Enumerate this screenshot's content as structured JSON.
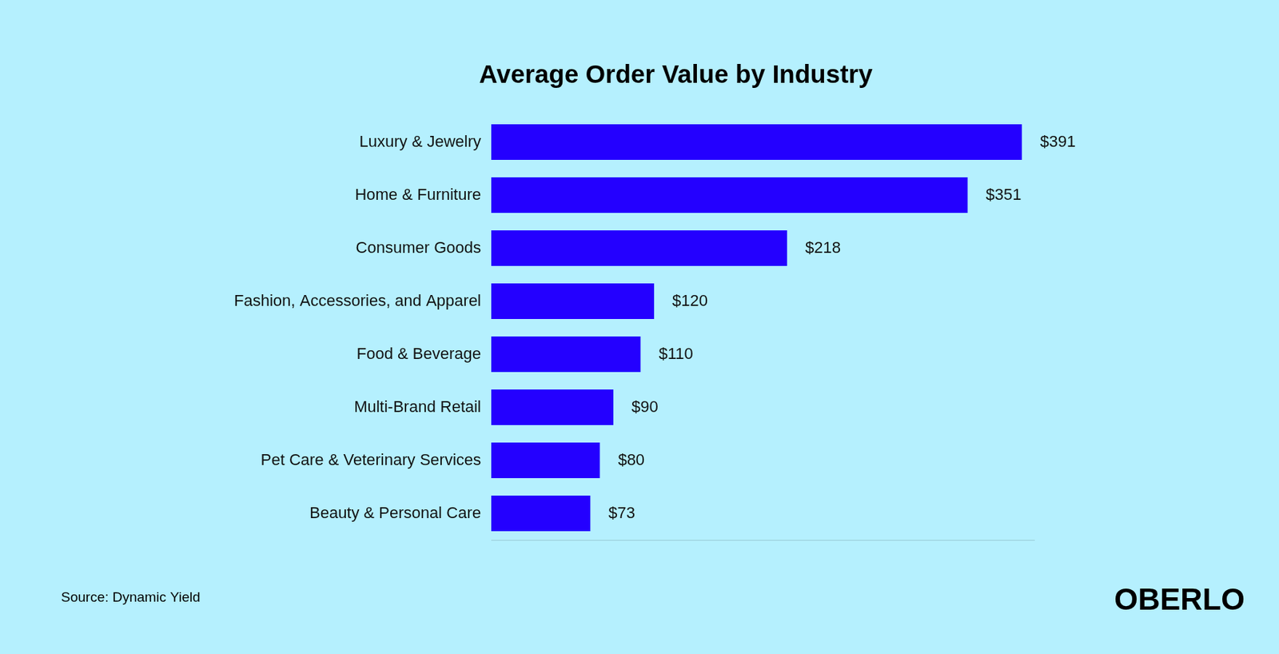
{
  "chart_data": {
    "type": "bar",
    "title": "Average Order Value by Industry",
    "categories": [
      "Luxury & Jewelry",
      "Home & Furniture",
      "Consumer Goods",
      "Fashion, Accessories, and Apparel",
      "Food & Beverage",
      "Multi-Brand Retail",
      "Pet Care & Veterinary Services",
      "Beauty & Personal Care"
    ],
    "values": [
      391,
      351,
      218,
      120,
      110,
      90,
      80,
      73
    ],
    "value_labels": [
      "$391",
      "$351",
      "$218",
      "$120",
      "$110",
      "$90",
      "$80",
      "$73"
    ],
    "color": "#2400ff",
    "orientation": "horizontal",
    "xlim": [
      0,
      400
    ],
    "grid": false,
    "data_labels": true,
    "tick_labels": "y",
    "source": "Source: Dynamic Yield",
    "brand": "OBERLO"
  }
}
